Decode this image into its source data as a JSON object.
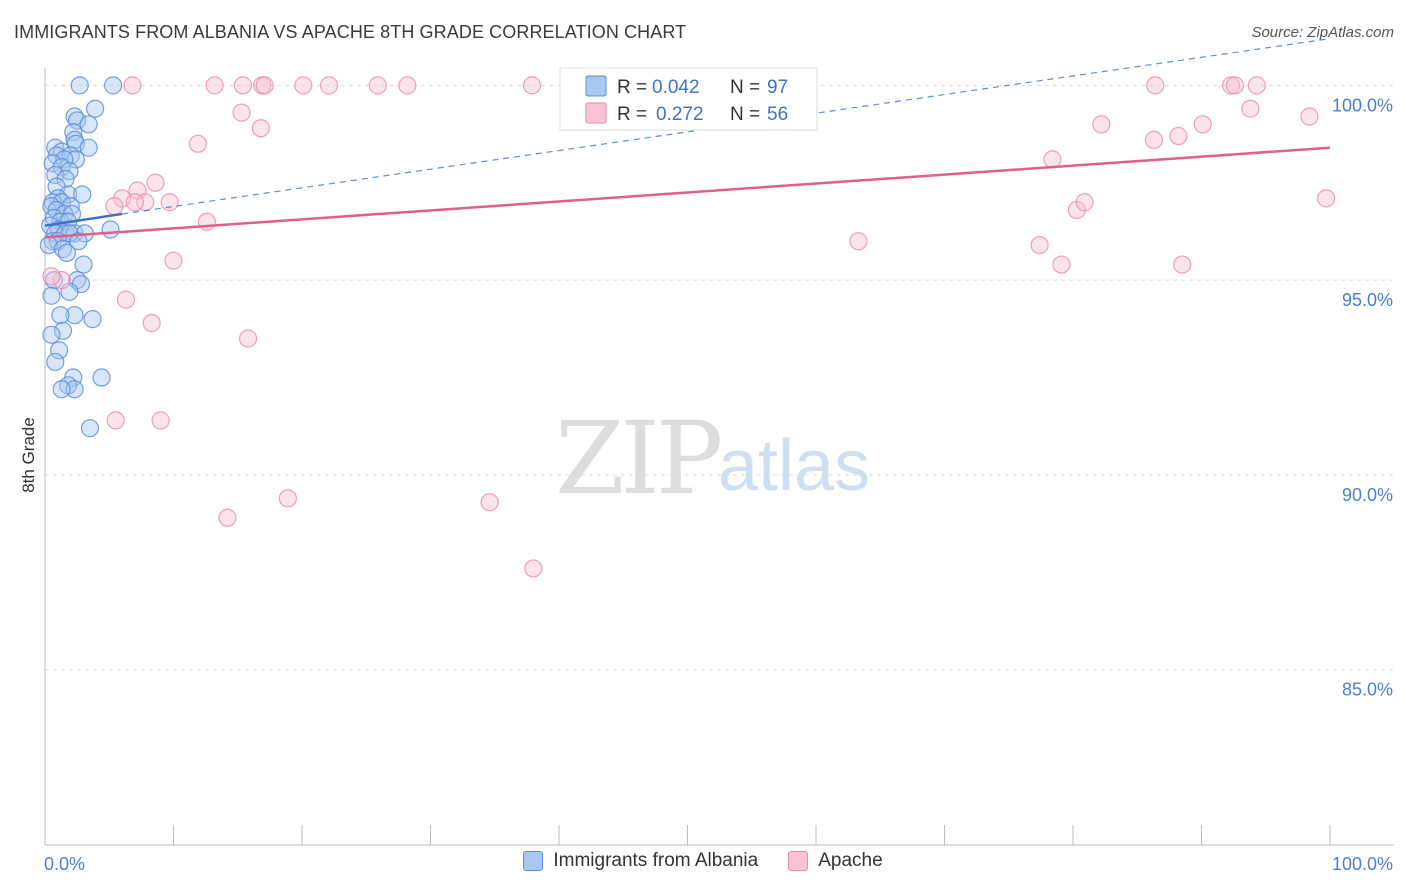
{
  "header": {
    "title": "IMMIGRANTS FROM ALBANIA VS APACHE 8TH GRADE CORRELATION CHART",
    "source": "Source: ZipAtlas.com"
  },
  "watermark": {
    "zip": "ZIP",
    "atlas": "atlas"
  },
  "legend": {
    "series": [
      {
        "r_label": "R =",
        "r_value": "0.042",
        "n_label": "N =",
        "n_value": "97"
      },
      {
        "r_label": "R =",
        "r_value": "0.272",
        "n_label": "N =",
        "n_value": "56"
      }
    ]
  },
  "bottom_legend": {
    "albania": "Immigrants from Albania",
    "apache": "Apache"
  },
  "colors": {
    "albania_fill": "#a9c8f0",
    "albania_stroke": "#5b8fdb",
    "albania_line": "#3b6fc8",
    "apache_fill": "#f8c3d3",
    "apache_stroke": "#e88aa8",
    "apache_line": "#e0608a",
    "tick": "#4a7fd0"
  },
  "chart_data": {
    "type": "scatter",
    "xlabel": "",
    "ylabel": "8th Grade",
    "xlim": [
      0,
      100
    ],
    "ylim": [
      80.5,
      100.6
    ],
    "x_tick_labels": [
      "0.0%",
      "100.0%"
    ],
    "y_ticks": [
      85,
      90,
      95,
      100
    ],
    "y_tick_labels": [
      "85.0%",
      "90.0%",
      "95.0%",
      "100.0%"
    ],
    "grid": true,
    "series": [
      {
        "name": "Immigrants from Albania",
        "trend": {
          "x": [
            0,
            6
          ],
          "y": [
            96.4,
            96.7
          ],
          "dashed_to": [
            100,
            101.2
          ]
        },
        "points": [
          [
            2.7,
            100
          ],
          [
            5.3,
            100
          ],
          [
            3.9,
            99.4
          ],
          [
            2.3,
            99.2
          ],
          [
            2.5,
            99.1
          ],
          [
            3.4,
            99.0
          ],
          [
            2.2,
            98.8
          ],
          [
            2.3,
            98.6
          ],
          [
            0.8,
            98.4
          ],
          [
            2.4,
            98.5
          ],
          [
            3.4,
            98.4
          ],
          [
            1.3,
            98.3
          ],
          [
            0.9,
            98.2
          ],
          [
            2.0,
            98.2
          ],
          [
            2.4,
            98.1
          ],
          [
            1.5,
            98.1
          ],
          [
            0.6,
            98.0
          ],
          [
            1.3,
            97.9
          ],
          [
            1.9,
            97.8
          ],
          [
            0.8,
            97.7
          ],
          [
            1.6,
            97.6
          ],
          [
            0.9,
            97.4
          ],
          [
            1.8,
            97.2
          ],
          [
            2.9,
            97.2
          ],
          [
            1.0,
            97.1
          ],
          [
            0.6,
            97.0
          ],
          [
            1.3,
            97.0
          ],
          [
            2.0,
            96.9
          ],
          [
            0.5,
            96.9
          ],
          [
            0.9,
            96.8
          ],
          [
            1.5,
            96.7
          ],
          [
            2.1,
            96.7
          ],
          [
            0.7,
            96.6
          ],
          [
            1.2,
            96.5
          ],
          [
            0.4,
            96.4
          ],
          [
            1.8,
            96.5
          ],
          [
            1.1,
            96.3
          ],
          [
            0.8,
            96.2
          ],
          [
            1.6,
            96.2
          ],
          [
            2.3,
            96.2
          ],
          [
            5.1,
            96.3
          ],
          [
            3.1,
            96.2
          ],
          [
            1.9,
            96.2
          ],
          [
            0.6,
            96.0
          ],
          [
            1.0,
            96.0
          ],
          [
            2.6,
            96.0
          ],
          [
            0.3,
            95.9
          ],
          [
            1.4,
            95.8
          ],
          [
            1.7,
            95.7
          ],
          [
            3.0,
            95.4
          ],
          [
            0.7,
            95.0
          ],
          [
            2.5,
            95.0
          ],
          [
            2.8,
            94.9
          ],
          [
            0.5,
            94.6
          ],
          [
            1.9,
            94.7
          ],
          [
            2.3,
            94.1
          ],
          [
            1.2,
            94.1
          ],
          [
            3.7,
            94.0
          ],
          [
            1.4,
            93.7
          ],
          [
            0.5,
            93.6
          ],
          [
            1.1,
            93.2
          ],
          [
            0.8,
            92.9
          ],
          [
            2.2,
            92.5
          ],
          [
            4.4,
            92.5
          ],
          [
            1.8,
            92.3
          ],
          [
            2.3,
            92.2
          ],
          [
            1.3,
            92.2
          ],
          [
            3.5,
            91.2
          ]
        ]
      },
      {
        "name": "Apache",
        "trend": {
          "x": [
            0,
            100
          ],
          "y": [
            96.1,
            98.4
          ]
        },
        "points": [
          [
            6.8,
            100
          ],
          [
            13.2,
            100
          ],
          [
            15.4,
            100
          ],
          [
            16.9,
            100
          ],
          [
            17.1,
            100
          ],
          [
            20.1,
            100
          ],
          [
            22.1,
            100
          ],
          [
            25.9,
            100
          ],
          [
            28.2,
            100
          ],
          [
            37.9,
            100
          ],
          [
            86.4,
            100
          ],
          [
            92.3,
            100
          ],
          [
            92.6,
            100
          ],
          [
            94.3,
            100
          ],
          [
            15.3,
            99.3
          ],
          [
            16.8,
            98.9
          ],
          [
            11.9,
            98.5
          ],
          [
            8.6,
            97.5
          ],
          [
            7.2,
            97.3
          ],
          [
            6.0,
            97.1
          ],
          [
            7.8,
            97.0
          ],
          [
            9.7,
            97.0
          ],
          [
            7.0,
            97.0
          ],
          [
            5.4,
            96.9
          ],
          [
            12.6,
            96.5
          ],
          [
            10.0,
            95.5
          ],
          [
            1.3,
            95.0
          ],
          [
            6.3,
            94.5
          ],
          [
            8.3,
            93.9
          ],
          [
            15.8,
            93.5
          ],
          [
            5.5,
            91.4
          ],
          [
            9.0,
            91.4
          ],
          [
            14.2,
            88.9
          ],
          [
            18.9,
            89.4
          ],
          [
            34.6,
            89.3
          ],
          [
            38.0,
            87.6
          ],
          [
            63.3,
            96.0
          ],
          [
            77.4,
            95.9
          ],
          [
            78.4,
            98.1
          ],
          [
            79.1,
            95.4
          ],
          [
            80.3,
            96.8
          ],
          [
            80.9,
            97.0
          ],
          [
            82.2,
            99.0
          ],
          [
            86.3,
            98.6
          ],
          [
            88.2,
            98.7
          ],
          [
            88.5,
            95.4
          ],
          [
            90.1,
            99.0
          ],
          [
            93.8,
            99.4
          ],
          [
            98.4,
            99.2
          ],
          [
            99.7,
            97.1
          ],
          [
            0.5,
            95.1
          ]
        ]
      }
    ]
  }
}
